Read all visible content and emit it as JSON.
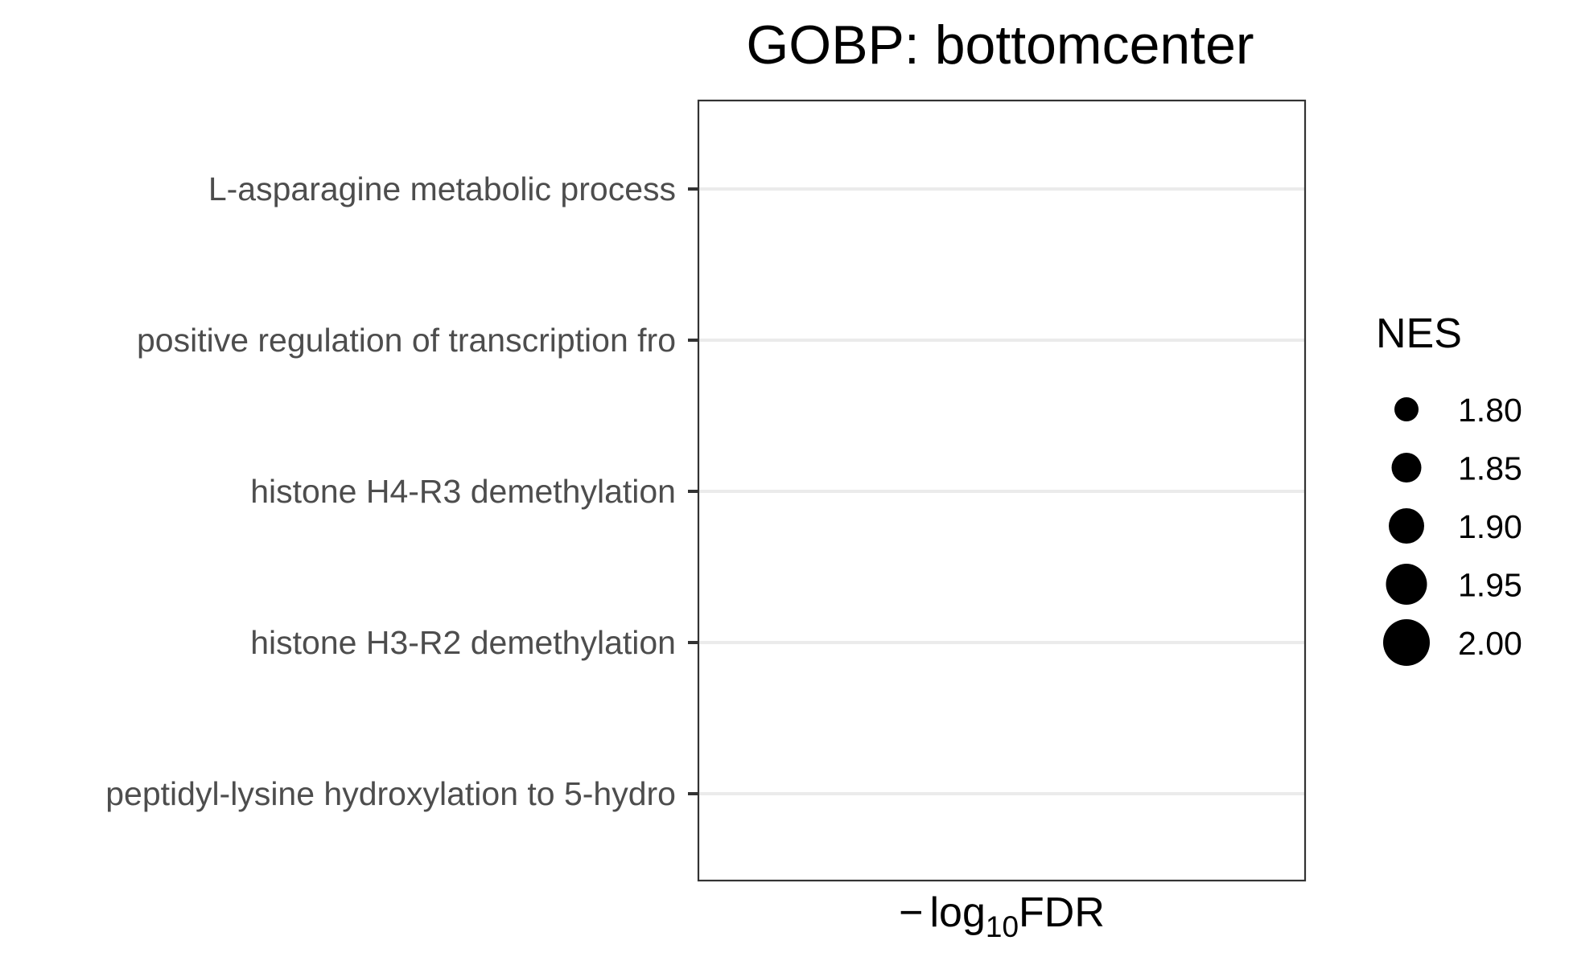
{
  "chart_data": {
    "type": "scatter",
    "title": "GOBP: bottomcenter",
    "xlabel": {
      "minus": "−",
      "log": "log",
      "sub": "10",
      "var": "FDR"
    },
    "ylabel": "",
    "categories": [
      "L-asparagine metabolic process",
      "positive regulation of transcription fro",
      "histone H4-R3 demethylation",
      "histone H3-R2 demethylation",
      "peptidyl-lysine hydroxylation to 5-hydro"
    ],
    "points": [],
    "grid": true,
    "legend": {
      "title": "NES",
      "position": "right",
      "values": [
        1.8,
        1.85,
        1.9,
        1.95,
        2.0
      ],
      "labels": [
        "1.80",
        "1.85",
        "1.90",
        "1.95",
        "2.00"
      ]
    },
    "colors": {
      "text_axis": "#4d4d4d",
      "grid": "#ebebeb",
      "frame": "#333333",
      "marker": "#000000"
    }
  }
}
